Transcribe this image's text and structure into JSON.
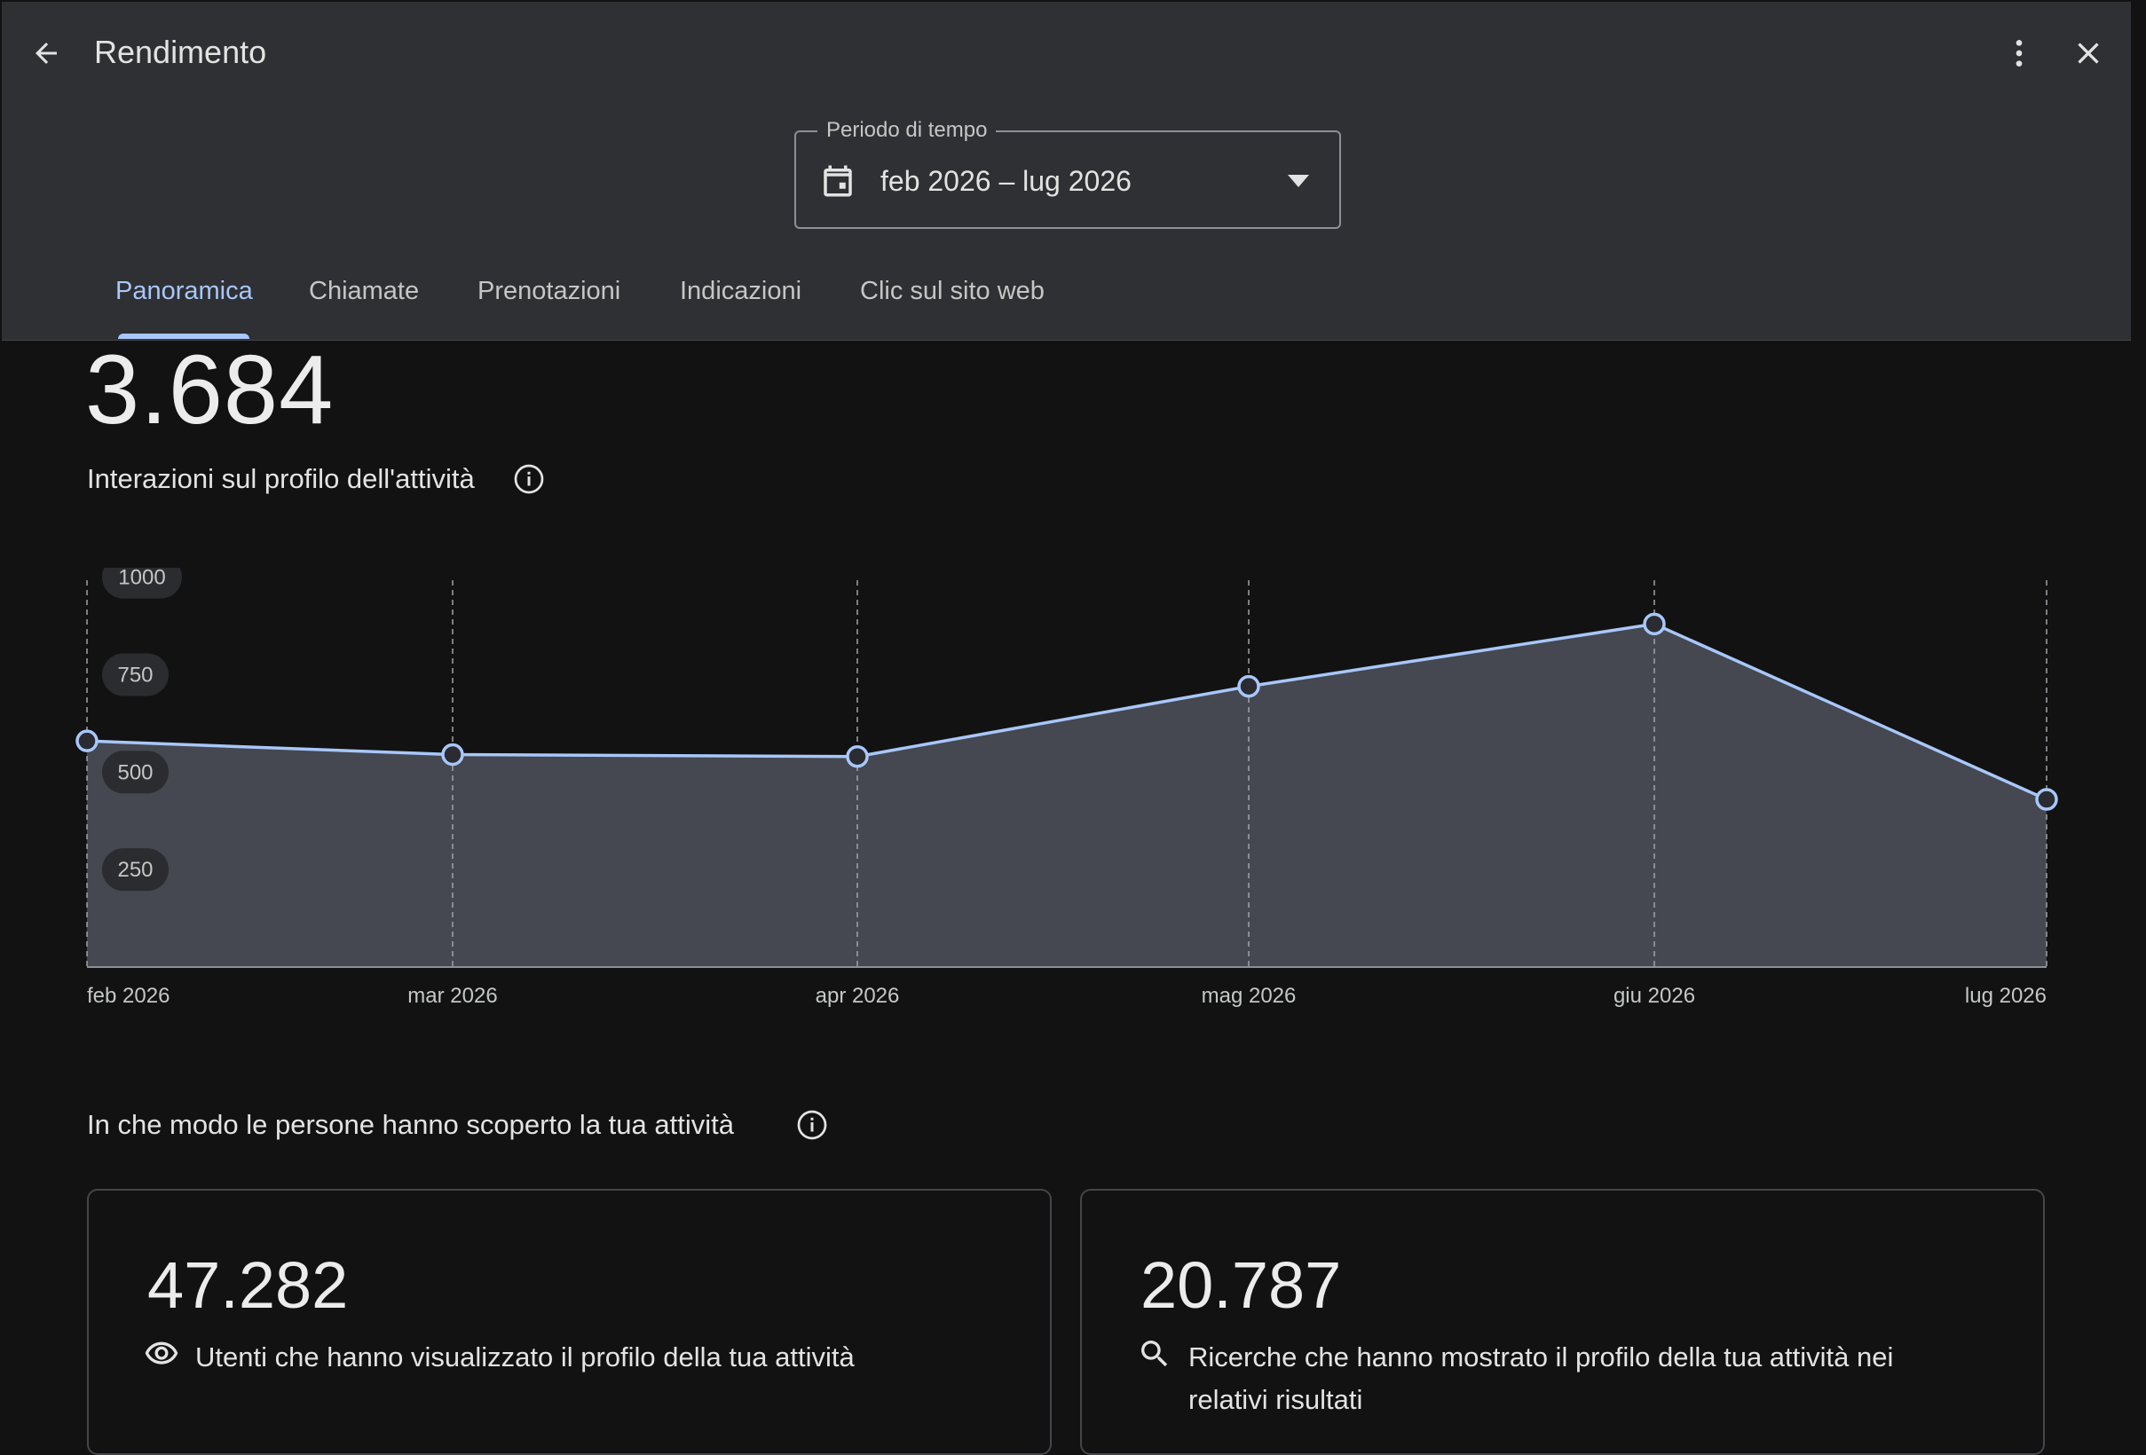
{
  "header": {
    "title": "Rendimento",
    "back_icon": "arrow-left-icon",
    "more_icon": "more-vert-icon",
    "close_icon": "close-icon"
  },
  "period": {
    "label": "Periodo di tempo",
    "value": "feb 2026 – lug 2026",
    "icon": "calendar-icon"
  },
  "tabs": [
    {
      "label": "Panoramica",
      "active": true
    },
    {
      "label": "Chiamate",
      "active": false
    },
    {
      "label": "Prenotazioni",
      "active": false
    },
    {
      "label": "Indicazioni",
      "active": false
    },
    {
      "label": "Clic sul sito web",
      "active": false
    }
  ],
  "overview": {
    "total": "3.684",
    "label": "Interazioni sul profilo dell'attività"
  },
  "chart_data": {
    "type": "area",
    "categories": [
      "feb 2026",
      "mar 2026",
      "apr 2026",
      "mag 2026",
      "giu 2026",
      "lug 2026"
    ],
    "series": [
      {
        "values": [
          580,
          545,
          540,
          720,
          880,
          430
        ]
      }
    ],
    "yticks": [
      1000,
      750,
      500,
      250
    ],
    "ylim": [
      0,
      1000
    ],
    "grid": "vertical-dashed",
    "colors": {
      "line": "#a8c7fa",
      "fill": "#454850",
      "grid": "#a0a3a8",
      "tick_bg": "#2b2c2f"
    }
  },
  "discovery": {
    "title": "In che modo le persone hanno scoperto la tua attività",
    "cards": [
      {
        "value": "47.282",
        "icon": "eye-icon",
        "label": "Utenti che hanno visualizzato il profilo della tua attività"
      },
      {
        "value": "20.787",
        "icon": "search-icon",
        "label": "Ricerche che hanno mostrato il profilo della tua attività nei relativi risultati"
      }
    ]
  }
}
